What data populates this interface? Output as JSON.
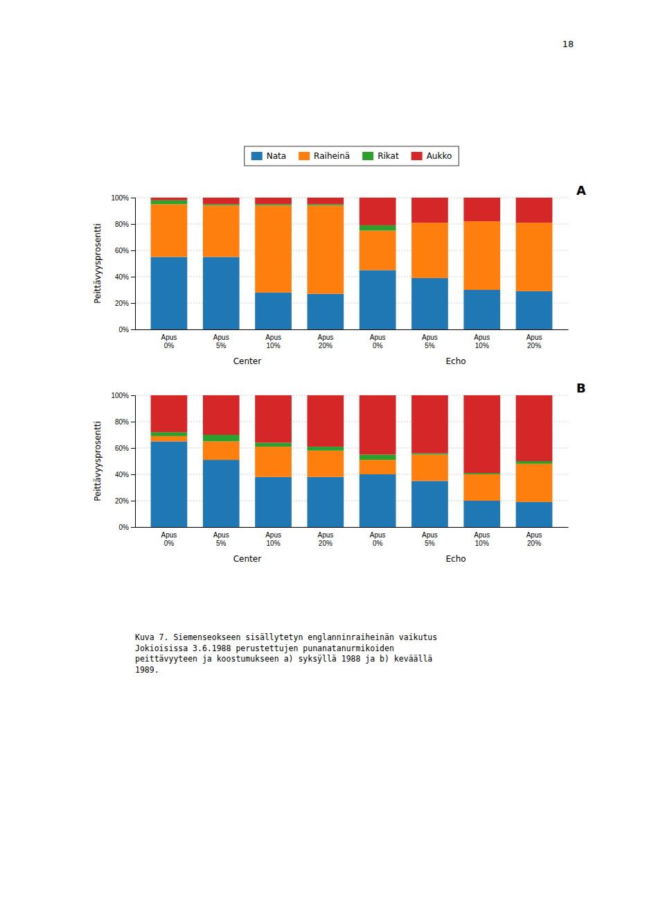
{
  "chart_data": [
    {
      "type": "bar",
      "stacked": true,
      "title": "A",
      "ylabel": "Peittävyysprosentti",
      "categories": [
        "Apus\n0%",
        "Apus\n5%",
        "Apus\n10%",
        "Apus\n20%",
        "Apus\n0%",
        "Apus\n5%",
        "Apus\n10%",
        "Apus\n20%"
      ],
      "annotations": [
        "Center",
        "Echo"
      ],
      "series": [
        {
          "name": "Nata",
          "values": [
            55,
            55,
            28,
            27,
            45,
            39,
            30,
            29
          ]
        },
        {
          "name": "Raiheinä",
          "values": [
            40,
            39,
            66,
            67,
            30,
            42,
            52,
            52
          ]
        },
        {
          "name": "Rikat",
          "values": [
            3,
            1,
            1,
            1,
            4,
            0,
            0,
            0
          ]
        },
        {
          "name": "Aukko",
          "values": [
            2,
            5,
            5,
            5,
            21,
            19,
            18,
            19
          ]
        }
      ],
      "ylim": [
        0,
        100
      ],
      "yticks": [
        {
          "value": 0,
          "label": "0%"
        },
        {
          "value": 20,
          "label": "20%"
        },
        {
          "value": 40,
          "label": "40%"
        },
        {
          "value": 60,
          "label": "60%"
        },
        {
          "value": 80,
          "label": "80%"
        },
        {
          "value": 100,
          "label": "100%"
        }
      ],
      "grid": true,
      "legend": "top"
    },
    {
      "type": "bar",
      "stacked": true,
      "title": "B",
      "ylabel": "Peittävyysprosentti",
      "categories": [
        "Apus\n0%",
        "Apus\n5%",
        "Apus\n10%",
        "Apus\n20%",
        "Apus\n0%",
        "Apus\n5%",
        "Apus\n10%",
        "Apus\n20%"
      ],
      "annotations": [
        "Center",
        "Echo"
      ],
      "series": [
        {
          "name": "Nata",
          "values": [
            65,
            51,
            38,
            38,
            40,
            35,
            20,
            19
          ]
        },
        {
          "name": "Raiheinä",
          "values": [
            4,
            14,
            23,
            20,
            11,
            20,
            20,
            29
          ]
        },
        {
          "name": "Rikat",
          "values": [
            3,
            5,
            3,
            3,
            4,
            1,
            1,
            2
          ]
        },
        {
          "name": "Aukko",
          "values": [
            28,
            30,
            36,
            39,
            45,
            44,
            59,
            50
          ]
        }
      ],
      "ylim": [
        0,
        100
      ],
      "yticks": [
        {
          "value": 0,
          "label": "0%"
        },
        {
          "value": 20,
          "label": "20%"
        },
        {
          "value": 40,
          "label": "40%"
        },
        {
          "value": 60,
          "label": "60%"
        },
        {
          "value": 80,
          "label": "80%"
        },
        {
          "value": 100,
          "label": "100%"
        }
      ],
      "grid": true
    }
  ],
  "annotations": [
    "18",
    "Kuva 7. Siemenseokseen sisällytetyn englanninraiheinän vaikutus\nJokioisissa 3.6.1988 perustettujen punanatanurmikoiden\npeittävyyteen ja koostumukseen a) syksÿllä 1988 ja b) keväällä\n1989."
  ]
}
